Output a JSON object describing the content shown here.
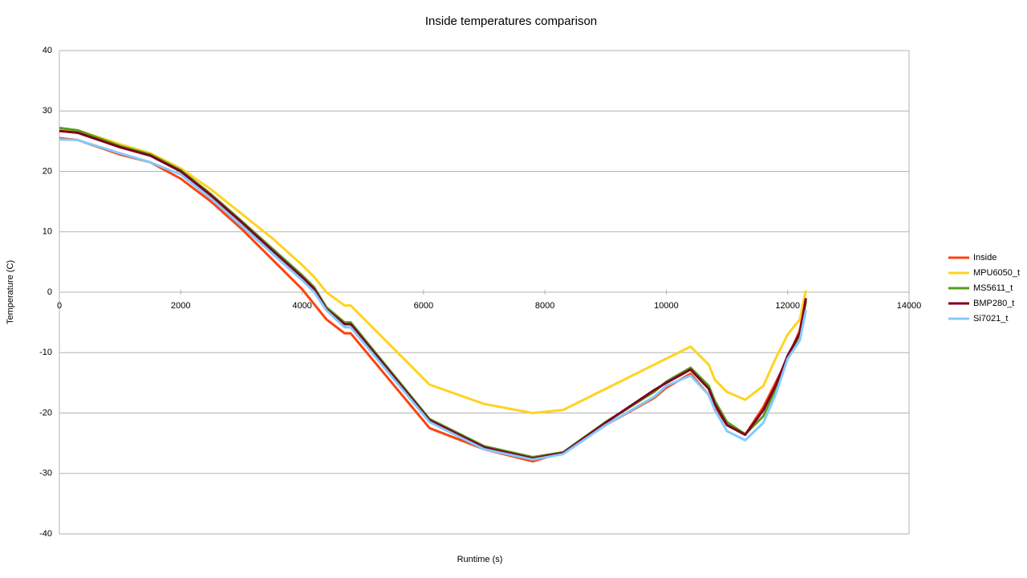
{
  "chart_data": {
    "type": "line",
    "title": "Inside temperatures comparison",
    "x_label": "Runtime (s)",
    "y_label": "Temperature (C)",
    "xlim": [
      0,
      14000
    ],
    "xticks": [
      0,
      2000,
      4000,
      6000,
      8000,
      10000,
      12000,
      14000
    ],
    "ylim": [
      -40,
      40
    ],
    "yticks": [
      -40,
      -30,
      -20,
      -10,
      0,
      10,
      20,
      30,
      40
    ],
    "grid": true,
    "legend": "right",
    "x": [
      0,
      300,
      1000,
      1500,
      2000,
      2500,
      3000,
      3500,
      4000,
      4200,
      4400,
      4700,
      4800,
      6100,
      7000,
      7800,
      8300,
      9000,
      9800,
      10000,
      10400,
      10700,
      10800,
      11000,
      11300,
      11600,
      11800,
      12000,
      12200,
      12300
    ],
    "series": [
      {
        "name": "Inside",
        "color": "#ff420e",
        "values": [
          25.5,
          25.2,
          22.8,
          21.5,
          18.8,
          15,
          10.5,
          5.5,
          0.5,
          -2,
          -4.5,
          -6.8,
          -6.8,
          -22.5,
          -26,
          -28,
          -26.5,
          -22,
          -17.5,
          -15.8,
          -13.5,
          -17,
          -19,
          -22,
          -23.6,
          -19,
          -15,
          -11,
          -6.3,
          -1
        ]
      },
      {
        "name": "MPU6050_t",
        "color": "#ffd320",
        "values": [
          27,
          26.8,
          24.5,
          23,
          20.5,
          17,
          13,
          9,
          4.5,
          2.5,
          0,
          -2.2,
          -2.2,
          -15.3,
          -18.5,
          -20,
          -19.5,
          -16,
          -12,
          -11,
          -9,
          -12,
          -14.5,
          -16.5,
          -17.8,
          -15.5,
          -11,
          -7,
          -4.5,
          0.3
        ]
      },
      {
        "name": "MS5611_t",
        "color": "#579d1c",
        "values": [
          27.2,
          26.8,
          24.2,
          22.8,
          20.2,
          16.2,
          11.8,
          7.3,
          2.8,
          0.8,
          -2.5,
          -5,
          -5,
          -21,
          -25.5,
          -27.3,
          -26.5,
          -21.5,
          -16.5,
          -14.8,
          -12.5,
          -15.5,
          -18,
          -21.5,
          -23.5,
          -20.5,
          -16,
          -11,
          -7,
          -1.5
        ]
      },
      {
        "name": "BMP280_t",
        "color": "#7e0021",
        "values": [
          26.7,
          26.4,
          24,
          22.6,
          20,
          16,
          11.6,
          7,
          2.5,
          0.5,
          -2.8,
          -5.3,
          -5.3,
          -21.2,
          -25.7,
          -27.5,
          -26.6,
          -21.6,
          -16.2,
          -15,
          -12.8,
          -16,
          -18.5,
          -22,
          -23.6,
          -19.5,
          -15.5,
          -10.5,
          -6.8,
          -1
        ]
      },
      {
        "name": "Si7021_t",
        "color": "#83caff",
        "values": [
          25.3,
          25.2,
          23,
          21.5,
          19.5,
          15.5,
          11,
          6.5,
          2,
          0,
          -3,
          -5.8,
          -5.8,
          -21.5,
          -26,
          -27.7,
          -26.8,
          -22,
          -17.3,
          -15.5,
          -13.8,
          -17,
          -19.5,
          -23,
          -24.5,
          -21.6,
          -17,
          -11,
          -8,
          -3
        ]
      }
    ]
  }
}
